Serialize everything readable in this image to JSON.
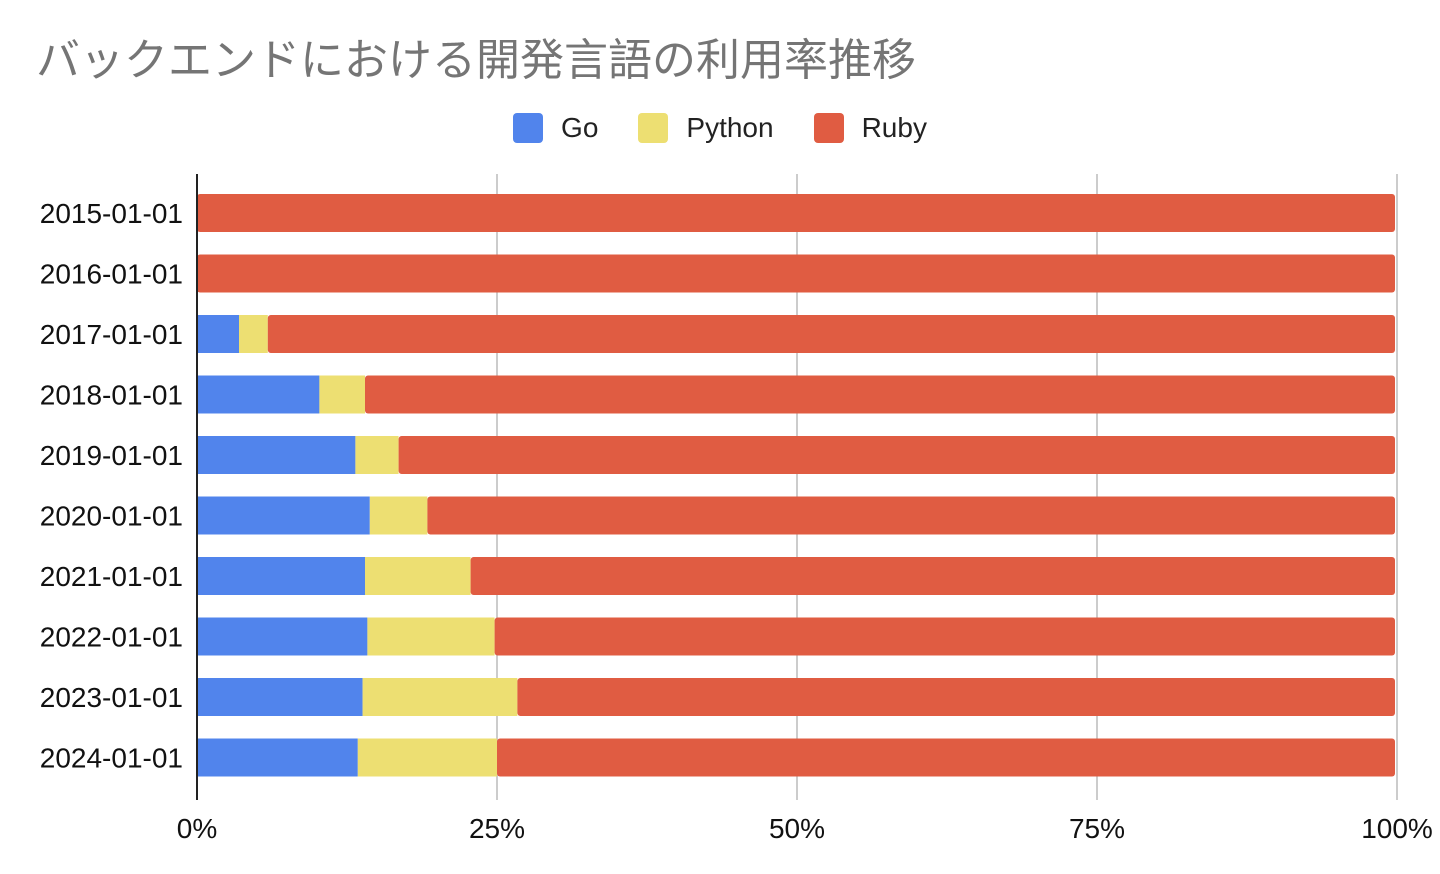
{
  "chart_data": {
    "type": "bar",
    "orientation": "horizontal",
    "stacked": "percent",
    "title": "バックエンドにおける開発言語の利用率推移",
    "categories": [
      "2015-01-01",
      "2016-01-01",
      "2017-01-01",
      "2018-01-01",
      "2019-01-01",
      "2020-01-01",
      "2021-01-01",
      "2022-01-01",
      "2023-01-01",
      "2024-01-01"
    ],
    "series": [
      {
        "name": "Go",
        "color": "#5184ec",
        "values": [
          0,
          0,
          3.5,
          10.2,
          13.2,
          14.4,
          14.0,
          14.2,
          13.8,
          13.4
        ]
      },
      {
        "name": "Python",
        "color": "#eddf72",
        "values": [
          0,
          0,
          2.4,
          3.8,
          3.6,
          4.8,
          8.8,
          10.6,
          12.9,
          11.6
        ]
      },
      {
        "name": "Ruby",
        "color": "#e05c42",
        "values": [
          100,
          100,
          94.1,
          86.0,
          83.2,
          80.8,
          77.2,
          75.2,
          73.3,
          75.0
        ]
      }
    ],
    "x_ticks": [
      "0%",
      "25%",
      "50%",
      "75%",
      "100%"
    ],
    "xlim": [
      0,
      100
    ],
    "grid": true,
    "legend_position": "top"
  }
}
